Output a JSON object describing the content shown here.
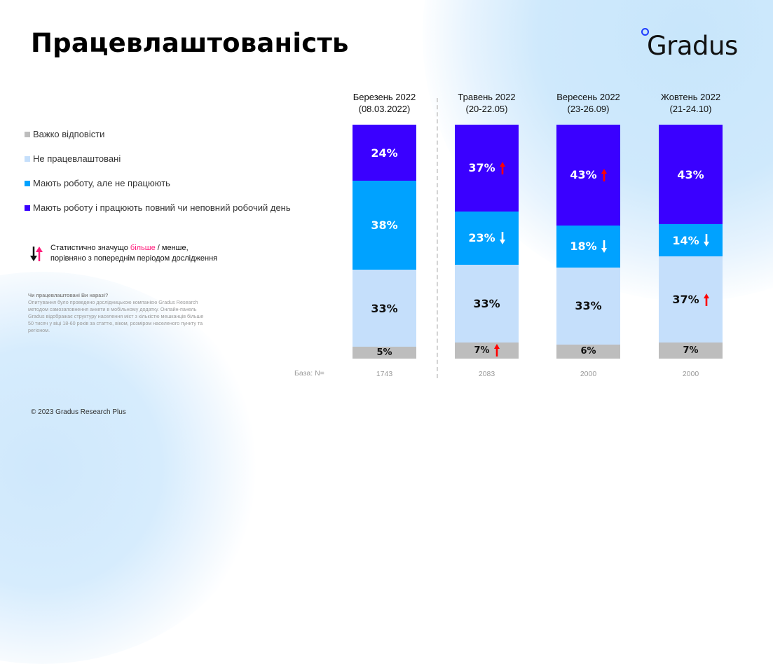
{
  "title": "Працевлаштованість",
  "logo": {
    "text": "Gradus"
  },
  "legend": [
    {
      "label": "Важко відповісти",
      "color": "#bdbdbd"
    },
    {
      "label": "Не працевлаштовані",
      "color": "#c5dffb"
    },
    {
      "label": "Мають роботу, але не працюють",
      "color": "#00a2ff"
    },
    {
      "label": "Мають роботу і працюють повний чи неповний робочий день",
      "color": "#3a00ff"
    }
  ],
  "significance_note": {
    "line1_prefix": "Статистично значущо ",
    "line1_highlight": "більше",
    "line1_suffix": " / менше,",
    "line2": "порівняно з попереднім періодом дослідження"
  },
  "methodology": {
    "question": "Чи працевлаштовані Ви наразі?",
    "text": "Опитування було проведено дослідницькою компанією Gradus Research методом самозаповнення анкети в мобільному додатку. Онлайн-панель Gradus відображає структуру населення міст з кількістю мешканців більше 50 тисяч у віці 18-60 років за статтю, віком, розміром населеного пункту та регіоном."
  },
  "base_label": "База: N=",
  "footer": "© 2023 Gradus Research Plus",
  "chart_data": {
    "type": "bar",
    "stacked": true,
    "orientation": "vertical",
    "title": "Працевлаштованість",
    "categories": [
      {
        "line1": "Березень 2022",
        "line2": "(08.03.2022)",
        "base": "1743"
      },
      {
        "line1": "Травень 2022",
        "line2": "(20-22.05)",
        "base": "2083"
      },
      {
        "line1": "Вересень 2022",
        "line2": "(23-26.09)",
        "base": "2000"
      },
      {
        "line1": "Жовтень 2022",
        "line2": "(21-24.10)",
        "base": "2000"
      }
    ],
    "series": [
      {
        "name": "Важко відповісти",
        "color": "#bdbdbd",
        "text_color": "#111111",
        "values": [
          5,
          7,
          6,
          7
        ],
        "significance": [
          null,
          "up",
          null,
          null
        ]
      },
      {
        "name": "Не працевлаштовані",
        "color": "#c5dffb",
        "text_color": "#111111",
        "values": [
          33,
          33,
          33,
          37
        ],
        "significance": [
          null,
          null,
          null,
          "up"
        ]
      },
      {
        "name": "Мають роботу, але не працюють",
        "color": "#00a2ff",
        "text_color": "#ffffff",
        "values": [
          38,
          23,
          18,
          14
        ],
        "significance": [
          null,
          "down",
          "down",
          "down"
        ]
      },
      {
        "name": "Мають роботу і працюють повний чи неповний робочий день",
        "color": "#3a00ff",
        "text_color": "#ffffff",
        "values": [
          24,
          37,
          43,
          43
        ],
        "significance": [
          null,
          "up",
          "up",
          null
        ]
      }
    ],
    "unit": "%",
    "ylim": [
      0,
      100
    ],
    "legend_position": "left",
    "significance_colors": {
      "up": "#ff0000",
      "down": "#ffffff"
    }
  }
}
